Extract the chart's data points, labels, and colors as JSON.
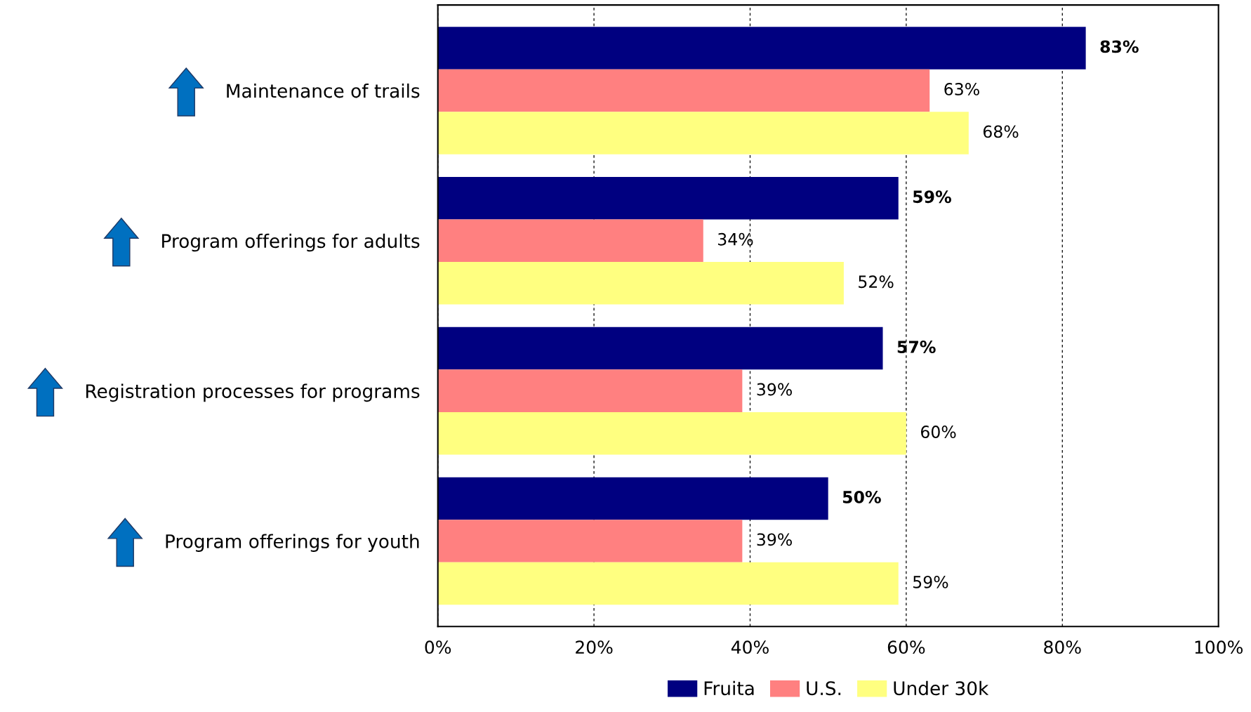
{
  "chart_data": {
    "type": "bar",
    "orientation": "horizontal",
    "categories": [
      "Maintenance of trails",
      "Program offerings for adults",
      "Registration processes for programs",
      "Program offerings for youth"
    ],
    "series": [
      {
        "name": "Fruita",
        "color": "#000080",
        "values": [
          83,
          59,
          57,
          50
        ],
        "value_labels": [
          "83%",
          "59%",
          "57%",
          "50%"
        ]
      },
      {
        "name": "U.S.",
        "color": "#ff8080",
        "values": [
          63,
          34,
          39,
          39
        ],
        "value_labels": [
          "63%",
          "34%",
          "39%",
          "39%"
        ]
      },
      {
        "name": "Under 30k",
        "color": "#ffff80",
        "values": [
          68,
          52,
          60,
          59
        ],
        "value_labels": [
          "68%",
          "52%",
          "60%",
          "59%"
        ]
      }
    ],
    "xlim": [
      0,
      100
    ],
    "xticks": [
      {
        "value": 0,
        "label": "0%"
      },
      {
        "value": 20,
        "label": "20%"
      },
      {
        "value": 40,
        "label": "40%"
      },
      {
        "value": 60,
        "label": "60%"
      },
      {
        "value": 80,
        "label": "80%"
      },
      {
        "value": 100,
        "label": "100%"
      }
    ],
    "grid": "x",
    "legend": "bottom"
  }
}
